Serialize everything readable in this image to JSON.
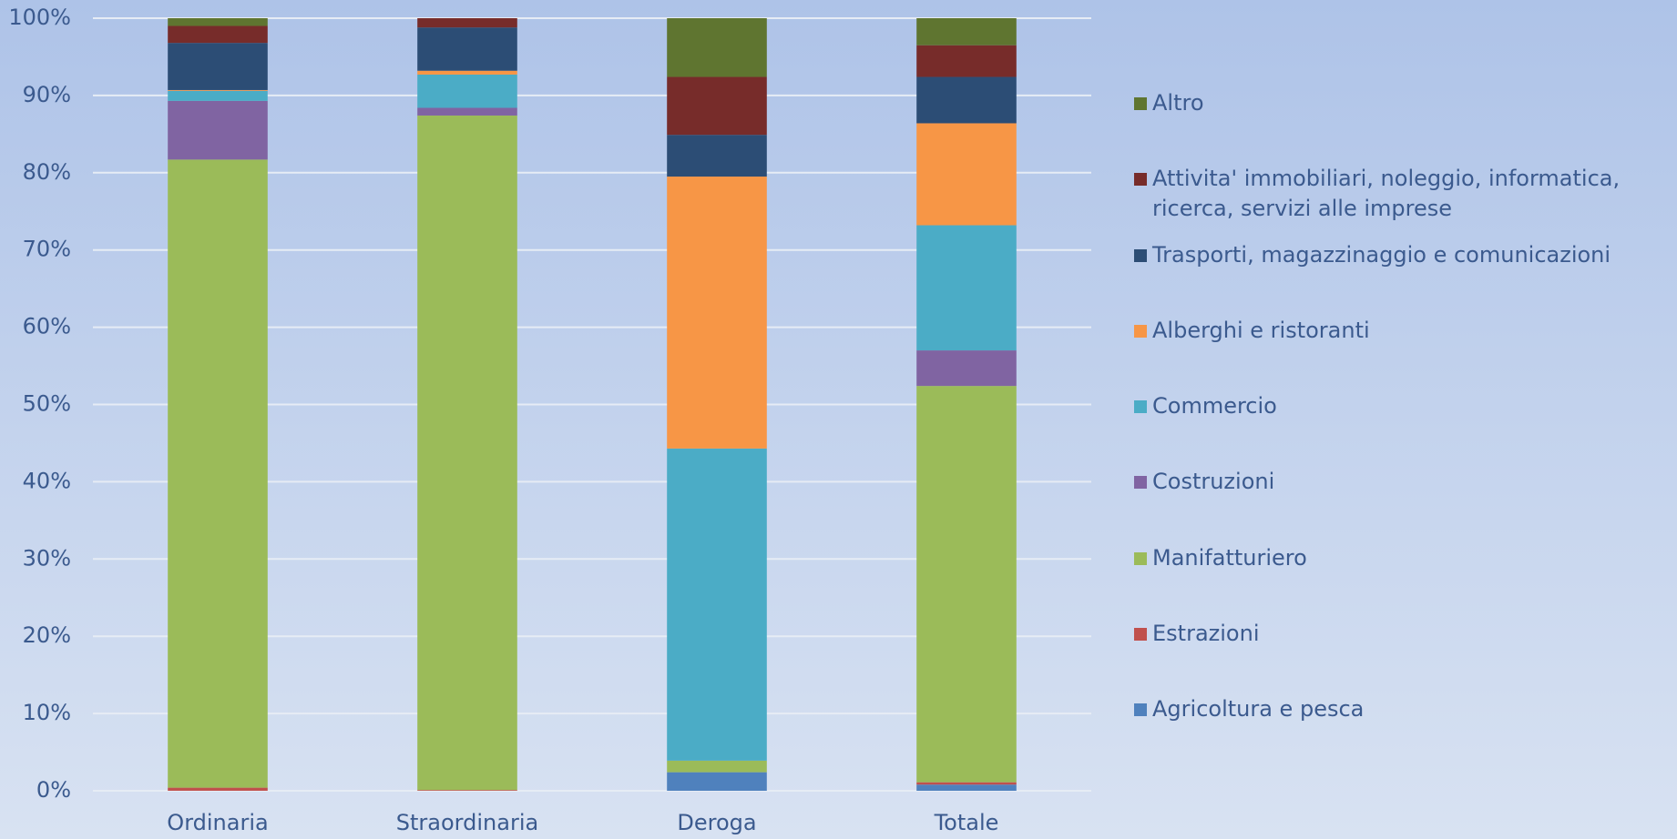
{
  "chart_data": {
    "type": "stacked_bar",
    "categories": [
      "Ordinaria",
      "Straordinaria",
      "Deroga",
      "Totale"
    ],
    "ylim": [
      0,
      100
    ],
    "yticks": [
      {
        "value": 0,
        "label": "0%"
      },
      {
        "value": 10,
        "label": "10%"
      },
      {
        "value": 20,
        "label": "20%"
      },
      {
        "value": 30,
        "label": "30%"
      },
      {
        "value": 40,
        "label": "40%"
      },
      {
        "value": 50,
        "label": "50%"
      },
      {
        "value": 60,
        "label": "60%"
      },
      {
        "value": 70,
        "label": "70%"
      },
      {
        "value": 80,
        "label": "80%"
      },
      {
        "value": 90,
        "label": "90%"
      },
      {
        "value": 100,
        "label": "100%"
      }
    ],
    "grid": true,
    "legend": "right",
    "series": [
      {
        "name": "Agricoltura e pesca",
        "color": "#4f81bd",
        "values": [
          0,
          0,
          2.4,
          0.8
        ]
      },
      {
        "name": "Estrazioni",
        "color": "#c0504d",
        "values": [
          0.4,
          0.1,
          0,
          0.3
        ]
      },
      {
        "name": "Manifatturiero",
        "color": "#9bbb59",
        "values": [
          81.3,
          87.3,
          1.5,
          51.3
        ]
      },
      {
        "name": "Costruzioni",
        "color": "#8064a2",
        "values": [
          7.6,
          1.0,
          0,
          4.6
        ]
      },
      {
        "name": "Commercio",
        "color": "#4bacc6",
        "values": [
          1.3,
          4.3,
          40.4,
          16.2
        ]
      },
      {
        "name": "Alberghi e ristoranti",
        "color": "#f79646",
        "values": [
          0.1,
          0.5,
          35.2,
          13.2
        ]
      },
      {
        "name": "Trasporti, magazzinaggio e comunicazioni",
        "color": "#2c4d75",
        "values": [
          6.1,
          5.6,
          5.4,
          6.0
        ]
      },
      {
        "name": "Attivita' immobiliari, noleggio, informatica, ricerca, servizi alle imprese",
        "color": "#772c2a",
        "values": [
          2.2,
          1.2,
          7.5,
          4.1
        ]
      },
      {
        "name": "Altro",
        "color": "#5f7530",
        "values": [
          1.0,
          0,
          7.6,
          3.5
        ]
      }
    ]
  }
}
